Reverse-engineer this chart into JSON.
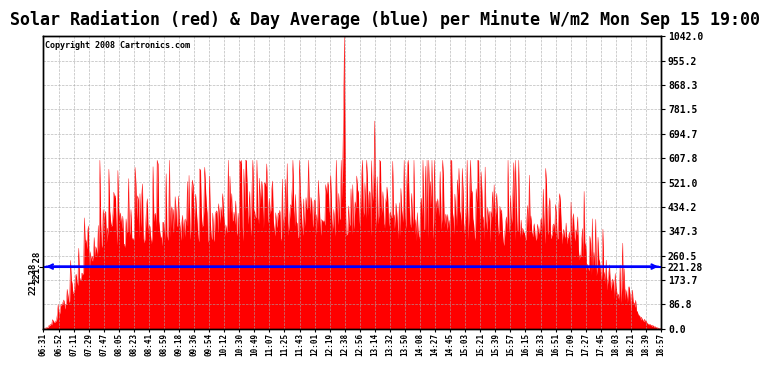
{
  "title": "Solar Radiation (red) & Day Average (blue) per Minute W/m2 Mon Sep 15 19:00",
  "copyright_text": "Copyright 2008 Cartronics.com",
  "y_max": 1042.0,
  "y_min": 0.0,
  "y_ticks": [
    0.0,
    86.8,
    173.7,
    260.5,
    347.3,
    434.2,
    521.0,
    607.8,
    694.7,
    781.5,
    868.3,
    955.2,
    1042.0
  ],
  "y_tick_labels": [
    "0.0",
    "86.8",
    "173.7",
    "260.5",
    "347.3",
    "434.2",
    "521.0",
    "607.8",
    "694.7",
    "781.5",
    "868.3",
    "955.2",
    "1042.0"
  ],
  "day_average": 221.28,
  "day_average_label": "221.28",
  "background_color": "#ffffff",
  "plot_bg_color": "#ffffff",
  "grid_color": "#aaaaaa",
  "fill_color": "#ff0000",
  "avg_line_color": "#0000ff",
  "title_fontsize": 12,
  "x_tick_labels": [
    "06:31",
    "06:52",
    "07:11",
    "07:29",
    "07:47",
    "08:05",
    "08:23",
    "08:41",
    "08:59",
    "09:18",
    "09:36",
    "09:54",
    "10:12",
    "10:30",
    "10:49",
    "11:07",
    "11:25",
    "11:43",
    "12:01",
    "12:19",
    "12:38",
    "12:56",
    "13:14",
    "13:32",
    "13:50",
    "14:08",
    "14:27",
    "14:45",
    "15:03",
    "15:21",
    "15:39",
    "15:57",
    "16:15",
    "16:33",
    "16:51",
    "17:09",
    "17:27",
    "17:45",
    "18:03",
    "18:21",
    "18:39",
    "18:57"
  ],
  "num_points": 756,
  "solar_data_seed": 42
}
